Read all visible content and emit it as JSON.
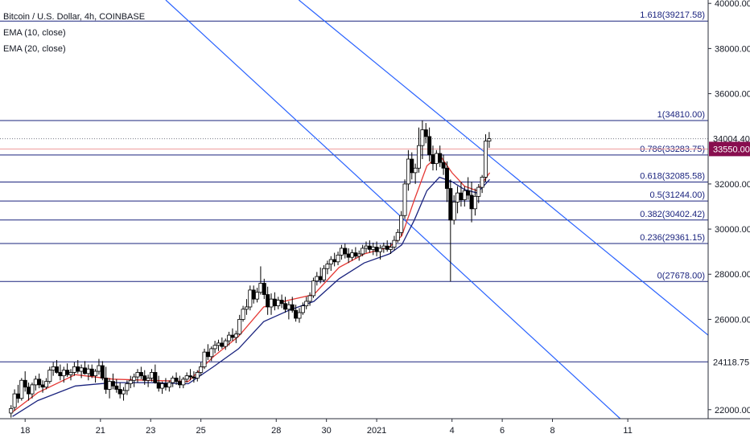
{
  "legend": {
    "symbol": "Bitcoin / U.S. Dollar, 4h, COINBASE",
    "ema10": "EMA (10, close)",
    "ema20": "EMA (20, close)"
  },
  "colors": {
    "up": "#ffffff",
    "down": "#000000",
    "wick": "#000000",
    "ema10": "#e53935",
    "ema20": "#1a237e",
    "fib": "#1a237e",
    "trend": "#2962ff",
    "price_tag": "#131722",
    "fib_tag": "#880e4f"
  },
  "chart_data": {
    "type": "candlestick",
    "title": "Bitcoin / U.S. Dollar, 4h, COINBASE",
    "ylim": [
      21600,
      40150
    ],
    "xlim": [
      0,
      28.2
    ],
    "x_ticks": [
      {
        "x": 1,
        "label": "18"
      },
      {
        "x": 4,
        "label": "21"
      },
      {
        "x": 6,
        "label": "23"
      },
      {
        "x": 8,
        "label": "25"
      },
      {
        "x": 11,
        "label": "28"
      },
      {
        "x": 13,
        "label": "30"
      },
      {
        "x": 15,
        "label": "2021"
      },
      {
        "x": 18,
        "label": "4"
      },
      {
        "x": 20,
        "label": "6"
      },
      {
        "x": 22,
        "label": "8"
      },
      {
        "x": 25,
        "label": "11"
      }
    ],
    "y_ticks": [
      {
        "v": 40000,
        "label": "40000.00"
      },
      {
        "v": 38000,
        "label": "38000.00"
      },
      {
        "v": 36000,
        "label": "36000.00"
      },
      {
        "v": 32000,
        "label": "32000.00"
      },
      {
        "v": 30000,
        "label": "30000.00"
      },
      {
        "v": 28000,
        "label": "28000.00"
      },
      {
        "v": 26000,
        "label": "26000.00"
      },
      {
        "v": 22000,
        "label": "22000.00"
      }
    ],
    "candles": [
      [
        0.44,
        21850,
        22200,
        21650,
        22050
      ],
      [
        0.58,
        22100,
        22900,
        21950,
        22700
      ],
      [
        0.72,
        22700,
        23100,
        22300,
        22500
      ],
      [
        0.86,
        22500,
        23400,
        22400,
        23300
      ],
      [
        1.0,
        23300,
        23700,
        22800,
        23000
      ],
      [
        1.14,
        23000,
        23200,
        22400,
        22700
      ],
      [
        1.28,
        22700,
        23200,
        22500,
        23100
      ],
      [
        1.42,
        23100,
        23500,
        22850,
        23350
      ],
      [
        1.56,
        23350,
        23600,
        22950,
        23100
      ],
      [
        1.7,
        23100,
        23300,
        22750,
        23000
      ],
      [
        1.84,
        23000,
        23400,
        22900,
        23250
      ],
      [
        1.98,
        23250,
        23900,
        23150,
        23750
      ],
      [
        2.12,
        23750,
        24100,
        23500,
        23900
      ],
      [
        2.26,
        23900,
        24200,
        23600,
        23650
      ],
      [
        2.4,
        23650,
        24000,
        23300,
        23500
      ],
      [
        2.54,
        23500,
        23900,
        23200,
        23750
      ],
      [
        2.68,
        23750,
        24050,
        23450,
        23550
      ],
      [
        2.82,
        23550,
        23800,
        23300,
        23650
      ],
      [
        2.96,
        23650,
        24100,
        23500,
        23900
      ],
      [
        3.1,
        23900,
        24200,
        23600,
        23700
      ],
      [
        3.24,
        23700,
        24000,
        23400,
        23850
      ],
      [
        3.38,
        23850,
        24150,
        23550,
        23600
      ],
      [
        3.52,
        23600,
        24000,
        23300,
        23800
      ],
      [
        3.66,
        23800,
        24000,
        23400,
        23500
      ],
      [
        3.8,
        23500,
        23800,
        23200,
        23700
      ],
      [
        3.94,
        23700,
        24250,
        23550,
        23950
      ],
      [
        4.08,
        23950,
        24150,
        23300,
        23400
      ],
      [
        4.22,
        23400,
        23900,
        22700,
        22900
      ],
      [
        4.36,
        22900,
        23400,
        22500,
        23250
      ],
      [
        4.5,
        23250,
        23600,
        22900,
        23050
      ],
      [
        4.64,
        23050,
        23350,
        22750,
        22900
      ],
      [
        4.78,
        22900,
        23200,
        22500,
        22700
      ],
      [
        4.92,
        22700,
        23000,
        22400,
        22850
      ],
      [
        5.06,
        22850,
        23300,
        22650,
        23150
      ],
      [
        5.2,
        23150,
        23500,
        22950,
        23300
      ],
      [
        5.34,
        23300,
        23600,
        23000,
        23450
      ],
      [
        5.48,
        23450,
        23800,
        23200,
        23650
      ],
      [
        5.62,
        23650,
        23900,
        23350,
        23500
      ],
      [
        5.76,
        23500,
        23750,
        23100,
        23300
      ],
      [
        5.9,
        23300,
        23550,
        23000,
        23400
      ],
      [
        6.04,
        23400,
        23800,
        23250,
        23650
      ],
      [
        6.18,
        23650,
        24000,
        23150,
        23200
      ],
      [
        6.32,
        23200,
        23500,
        22800,
        22950
      ],
      [
        6.46,
        22950,
        23250,
        22700,
        23150
      ],
      [
        6.6,
        23150,
        23400,
        22850,
        23000
      ],
      [
        6.74,
        23000,
        23300,
        22800,
        23200
      ],
      [
        6.88,
        23200,
        23500,
        23000,
        23400
      ],
      [
        7.02,
        23400,
        23650,
        23100,
        23250
      ],
      [
        7.16,
        23250,
        23500,
        22950,
        23100
      ],
      [
        7.3,
        23100,
        23450,
        22950,
        23350
      ],
      [
        7.44,
        23350,
        23650,
        23200,
        23500
      ],
      [
        7.58,
        23500,
        23800,
        23300,
        23450
      ],
      [
        7.72,
        23450,
        23700,
        23200,
        23400
      ],
      [
        7.86,
        23400,
        23750,
        23250,
        23650
      ],
      [
        8.0,
        23650,
        24100,
        23500,
        23900
      ],
      [
        8.14,
        23900,
        24700,
        23800,
        24550
      ],
      [
        8.28,
        24550,
        24900,
        24200,
        24350
      ],
      [
        8.42,
        24350,
        24800,
        24150,
        24700
      ],
      [
        8.56,
        24700,
        25050,
        24500,
        24850
      ],
      [
        8.7,
        24850,
        25100,
        24600,
        24950
      ],
      [
        8.84,
        24950,
        25200,
        24700,
        24800
      ],
      [
        8.98,
        24800,
        25150,
        24650,
        25050
      ],
      [
        9.12,
        25050,
        25450,
        24850,
        25300
      ],
      [
        9.26,
        25300,
        25600,
        25050,
        25200
      ],
      [
        9.4,
        25200,
        25500,
        24950,
        25350
      ],
      [
        9.54,
        25350,
        26200,
        25300,
        26000
      ],
      [
        9.68,
        26000,
        26600,
        25900,
        26450
      ],
      [
        9.82,
        26450,
        26900,
        26200,
        26550
      ],
      [
        9.96,
        26550,
        27500,
        26400,
        27300
      ],
      [
        10.1,
        27300,
        27500,
        26700,
        26900
      ],
      [
        10.24,
        26900,
        27400,
        26750,
        27200
      ],
      [
        10.38,
        27200,
        28350,
        27100,
        27600
      ],
      [
        10.52,
        27600,
        27800,
        26900,
        27100
      ],
      [
        10.66,
        27100,
        27450,
        26200,
        26550
      ],
      [
        10.8,
        26550,
        27150,
        26200,
        26900
      ],
      [
        10.94,
        26900,
        27200,
        26400,
        26600
      ],
      [
        11.08,
        26600,
        27000,
        26450,
        26850
      ],
      [
        11.22,
        26850,
        27100,
        26500,
        26700
      ],
      [
        11.36,
        26700,
        27000,
        26300,
        26450
      ],
      [
        11.5,
        26450,
        26800,
        26000,
        26650
      ],
      [
        11.64,
        26650,
        27000,
        26300,
        26400
      ],
      [
        11.78,
        26400,
        26650,
        25900,
        26050
      ],
      [
        11.92,
        26050,
        26500,
        25850,
        26300
      ],
      [
        12.06,
        26300,
        26750,
        26200,
        26600
      ],
      [
        12.2,
        26600,
        27000,
        26450,
        26800
      ],
      [
        12.34,
        26800,
        27200,
        26600,
        27050
      ],
      [
        12.48,
        27050,
        27850,
        26950,
        27700
      ],
      [
        12.62,
        27700,
        28100,
        27500,
        27900
      ],
      [
        12.76,
        27900,
        28300,
        27600,
        27750
      ],
      [
        12.9,
        27750,
        28400,
        27650,
        28250
      ],
      [
        13.04,
        28250,
        28600,
        28000,
        28450
      ],
      [
        13.18,
        28450,
        28800,
        28150,
        28650
      ],
      [
        13.32,
        28650,
        28950,
        28350,
        28550
      ],
      [
        13.46,
        28550,
        29000,
        28400,
        28850
      ],
      [
        13.6,
        28850,
        29300,
        28650,
        29150
      ],
      [
        13.74,
        29150,
        29350,
        28700,
        28900
      ],
      [
        13.88,
        28900,
        29150,
        28500,
        28750
      ],
      [
        14.02,
        28750,
        29100,
        28600,
        28950
      ],
      [
        14.16,
        28950,
        29200,
        28700,
        28800
      ],
      [
        14.3,
        28800,
        29050,
        28600,
        28900
      ],
      [
        14.44,
        28900,
        29300,
        28800,
        29150
      ],
      [
        14.58,
        29150,
        29450,
        28950,
        29250
      ],
      [
        14.72,
        29250,
        29500,
        28950,
        29100
      ],
      [
        14.86,
        29100,
        29400,
        28850,
        29200
      ],
      [
        15.0,
        29200,
        29450,
        28800,
        29000
      ],
      [
        15.14,
        29000,
        29300,
        28650,
        29150
      ],
      [
        15.28,
        29150,
        29400,
        28950,
        29250
      ],
      [
        15.42,
        29250,
        29500,
        29000,
        29100
      ],
      [
        15.56,
        29100,
        29400,
        28900,
        29200
      ],
      [
        15.7,
        29200,
        29700,
        29050,
        29500
      ],
      [
        15.84,
        29500,
        30000,
        29400,
        29850
      ],
      [
        15.98,
        29850,
        30800,
        29700,
        30600
      ],
      [
        16.12,
        30600,
        32200,
        30450,
        32000
      ],
      [
        16.26,
        32000,
        33500,
        31700,
        33100
      ],
      [
        16.4,
        33100,
        33400,
        32200,
        32500
      ],
      [
        16.54,
        32500,
        32900,
        32000,
        32700
      ],
      [
        16.68,
        32700,
        34500,
        32500,
        33700
      ],
      [
        16.82,
        33700,
        34810,
        33100,
        34400
      ],
      [
        16.96,
        34400,
        34700,
        33800,
        34100
      ],
      [
        17.1,
        34100,
        34500,
        33000,
        33300
      ],
      [
        17.24,
        33300,
        33700,
        32600,
        32900
      ],
      [
        17.38,
        32900,
        33500,
        32600,
        33350
      ],
      [
        17.52,
        33350,
        33700,
        32750,
        32950
      ],
      [
        17.66,
        32950,
        33300,
        32400,
        32700
      ],
      [
        17.8,
        32700,
        33000,
        31200,
        31800
      ],
      [
        17.94,
        31800,
        32200,
        27678,
        30400
      ],
      [
        18.08,
        30400,
        31500,
        30200,
        31200
      ],
      [
        18.22,
        31200,
        31900,
        30700,
        31600
      ],
      [
        18.36,
        31600,
        32100,
        31000,
        31300
      ],
      [
        18.5,
        31300,
        31900,
        31000,
        31700
      ],
      [
        18.64,
        31700,
        32300,
        31300,
        31500
      ],
      [
        18.78,
        31500,
        32100,
        30300,
        30900
      ],
      [
        18.92,
        30900,
        31800,
        30600,
        31450
      ],
      [
        19.06,
        31450,
        32000,
        31150,
        31850
      ],
      [
        19.2,
        31850,
        32400,
        31600,
        32300
      ],
      [
        19.34,
        32300,
        34200,
        32100,
        33900
      ],
      [
        19.48,
        33900,
        34300,
        33600,
        34004
      ]
    ],
    "ema10": [
      [
        0.5,
        21900
      ],
      [
        1.5,
        22750
      ],
      [
        3.0,
        23550
      ],
      [
        4.5,
        23350
      ],
      [
        6.0,
        23300
      ],
      [
        7.5,
        23250
      ],
      [
        8.5,
        24350
      ],
      [
        9.5,
        25250
      ],
      [
        10.5,
        26550
      ],
      [
        11.5,
        26850
      ],
      [
        12.5,
        27100
      ],
      [
        13.5,
        28300
      ],
      [
        14.5,
        28900
      ],
      [
        15.5,
        29200
      ],
      [
        16.0,
        29700
      ],
      [
        16.5,
        31300
      ],
      [
        17.0,
        32800
      ],
      [
        17.5,
        33300
      ],
      [
        18.0,
        32500
      ],
      [
        18.5,
        31900
      ],
      [
        19.0,
        31700
      ],
      [
        19.5,
        32500
      ]
    ],
    "ema20": [
      [
        0.5,
        21700
      ],
      [
        1.5,
        22400
      ],
      [
        3.0,
        23050
      ],
      [
        4.5,
        23200
      ],
      [
        6.0,
        23200
      ],
      [
        7.5,
        23150
      ],
      [
        8.5,
        23900
      ],
      [
        9.5,
        24700
      ],
      [
        10.5,
        25900
      ],
      [
        11.5,
        26400
      ],
      [
        12.5,
        26800
      ],
      [
        13.5,
        27800
      ],
      [
        14.5,
        28500
      ],
      [
        15.5,
        28900
      ],
      [
        16.0,
        29300
      ],
      [
        16.5,
        30400
      ],
      [
        17.0,
        31700
      ],
      [
        17.5,
        32300
      ],
      [
        18.0,
        32100
      ],
      [
        18.5,
        31750
      ],
      [
        19.0,
        31600
      ],
      [
        19.5,
        32200
      ]
    ],
    "fib_levels": [
      {
        "ratio": "1.618",
        "value": 39217.58,
        "label": "1.618(39217.58)"
      },
      {
        "ratio": "1",
        "value": 34810.0,
        "label": "1(34810.00)"
      },
      {
        "ratio": "0.786",
        "value": 33283.75,
        "label": "0.786(33283.75)"
      },
      {
        "ratio": "0.618",
        "value": 32085.58,
        "label": "0.618(32085.58)"
      },
      {
        "ratio": "0.5",
        "value": 31244.0,
        "label": "0.5(31244.00)"
      },
      {
        "ratio": "0.382",
        "value": 30402.42,
        "label": "0.382(30402.42)"
      },
      {
        "ratio": "0.236",
        "value": 29361.15,
        "label": "0.236(29361.15)"
      },
      {
        "ratio": "0",
        "value": 27678.0,
        "label": "0(27678.00)"
      }
    ],
    "hlines": [
      {
        "value": 24118.75,
        "label": "24118.75"
      },
      {
        "value": 33550.0,
        "label": "33550.00",
        "tag": "fib"
      }
    ],
    "price_line": {
      "value": 34004.4,
      "label": "34004.40"
    },
    "trend_lines": [
      {
        "from": [
          6.6,
          40150
        ],
        "to": [
          24.7,
          21600
        ]
      },
      {
        "from": [
          11.9,
          40150
        ],
        "to": [
          28.2,
          25300
        ]
      }
    ]
  }
}
